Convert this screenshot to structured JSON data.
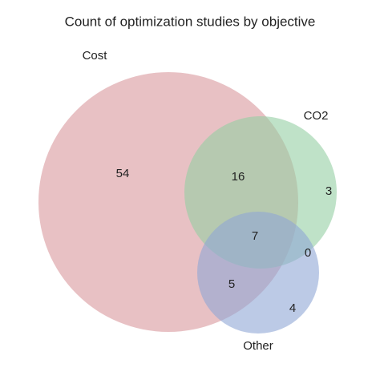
{
  "chart_data": {
    "type": "venn",
    "title": "Count of optimization studies by objective",
    "sets": [
      {
        "name": "Cost",
        "color": "#d9979c"
      },
      {
        "name": "CO2",
        "color": "#94cfa3"
      },
      {
        "name": "Other",
        "color": "#8fa6d6"
      }
    ],
    "regions": [
      "Cost",
      "CO2",
      "Other",
      "Cost & CO2",
      "Cost & Other",
      "CO2 & Other",
      "Cost & CO2 & Other"
    ],
    "values": [
      54,
      3,
      4,
      16,
      5,
      0,
      7
    ]
  }
}
